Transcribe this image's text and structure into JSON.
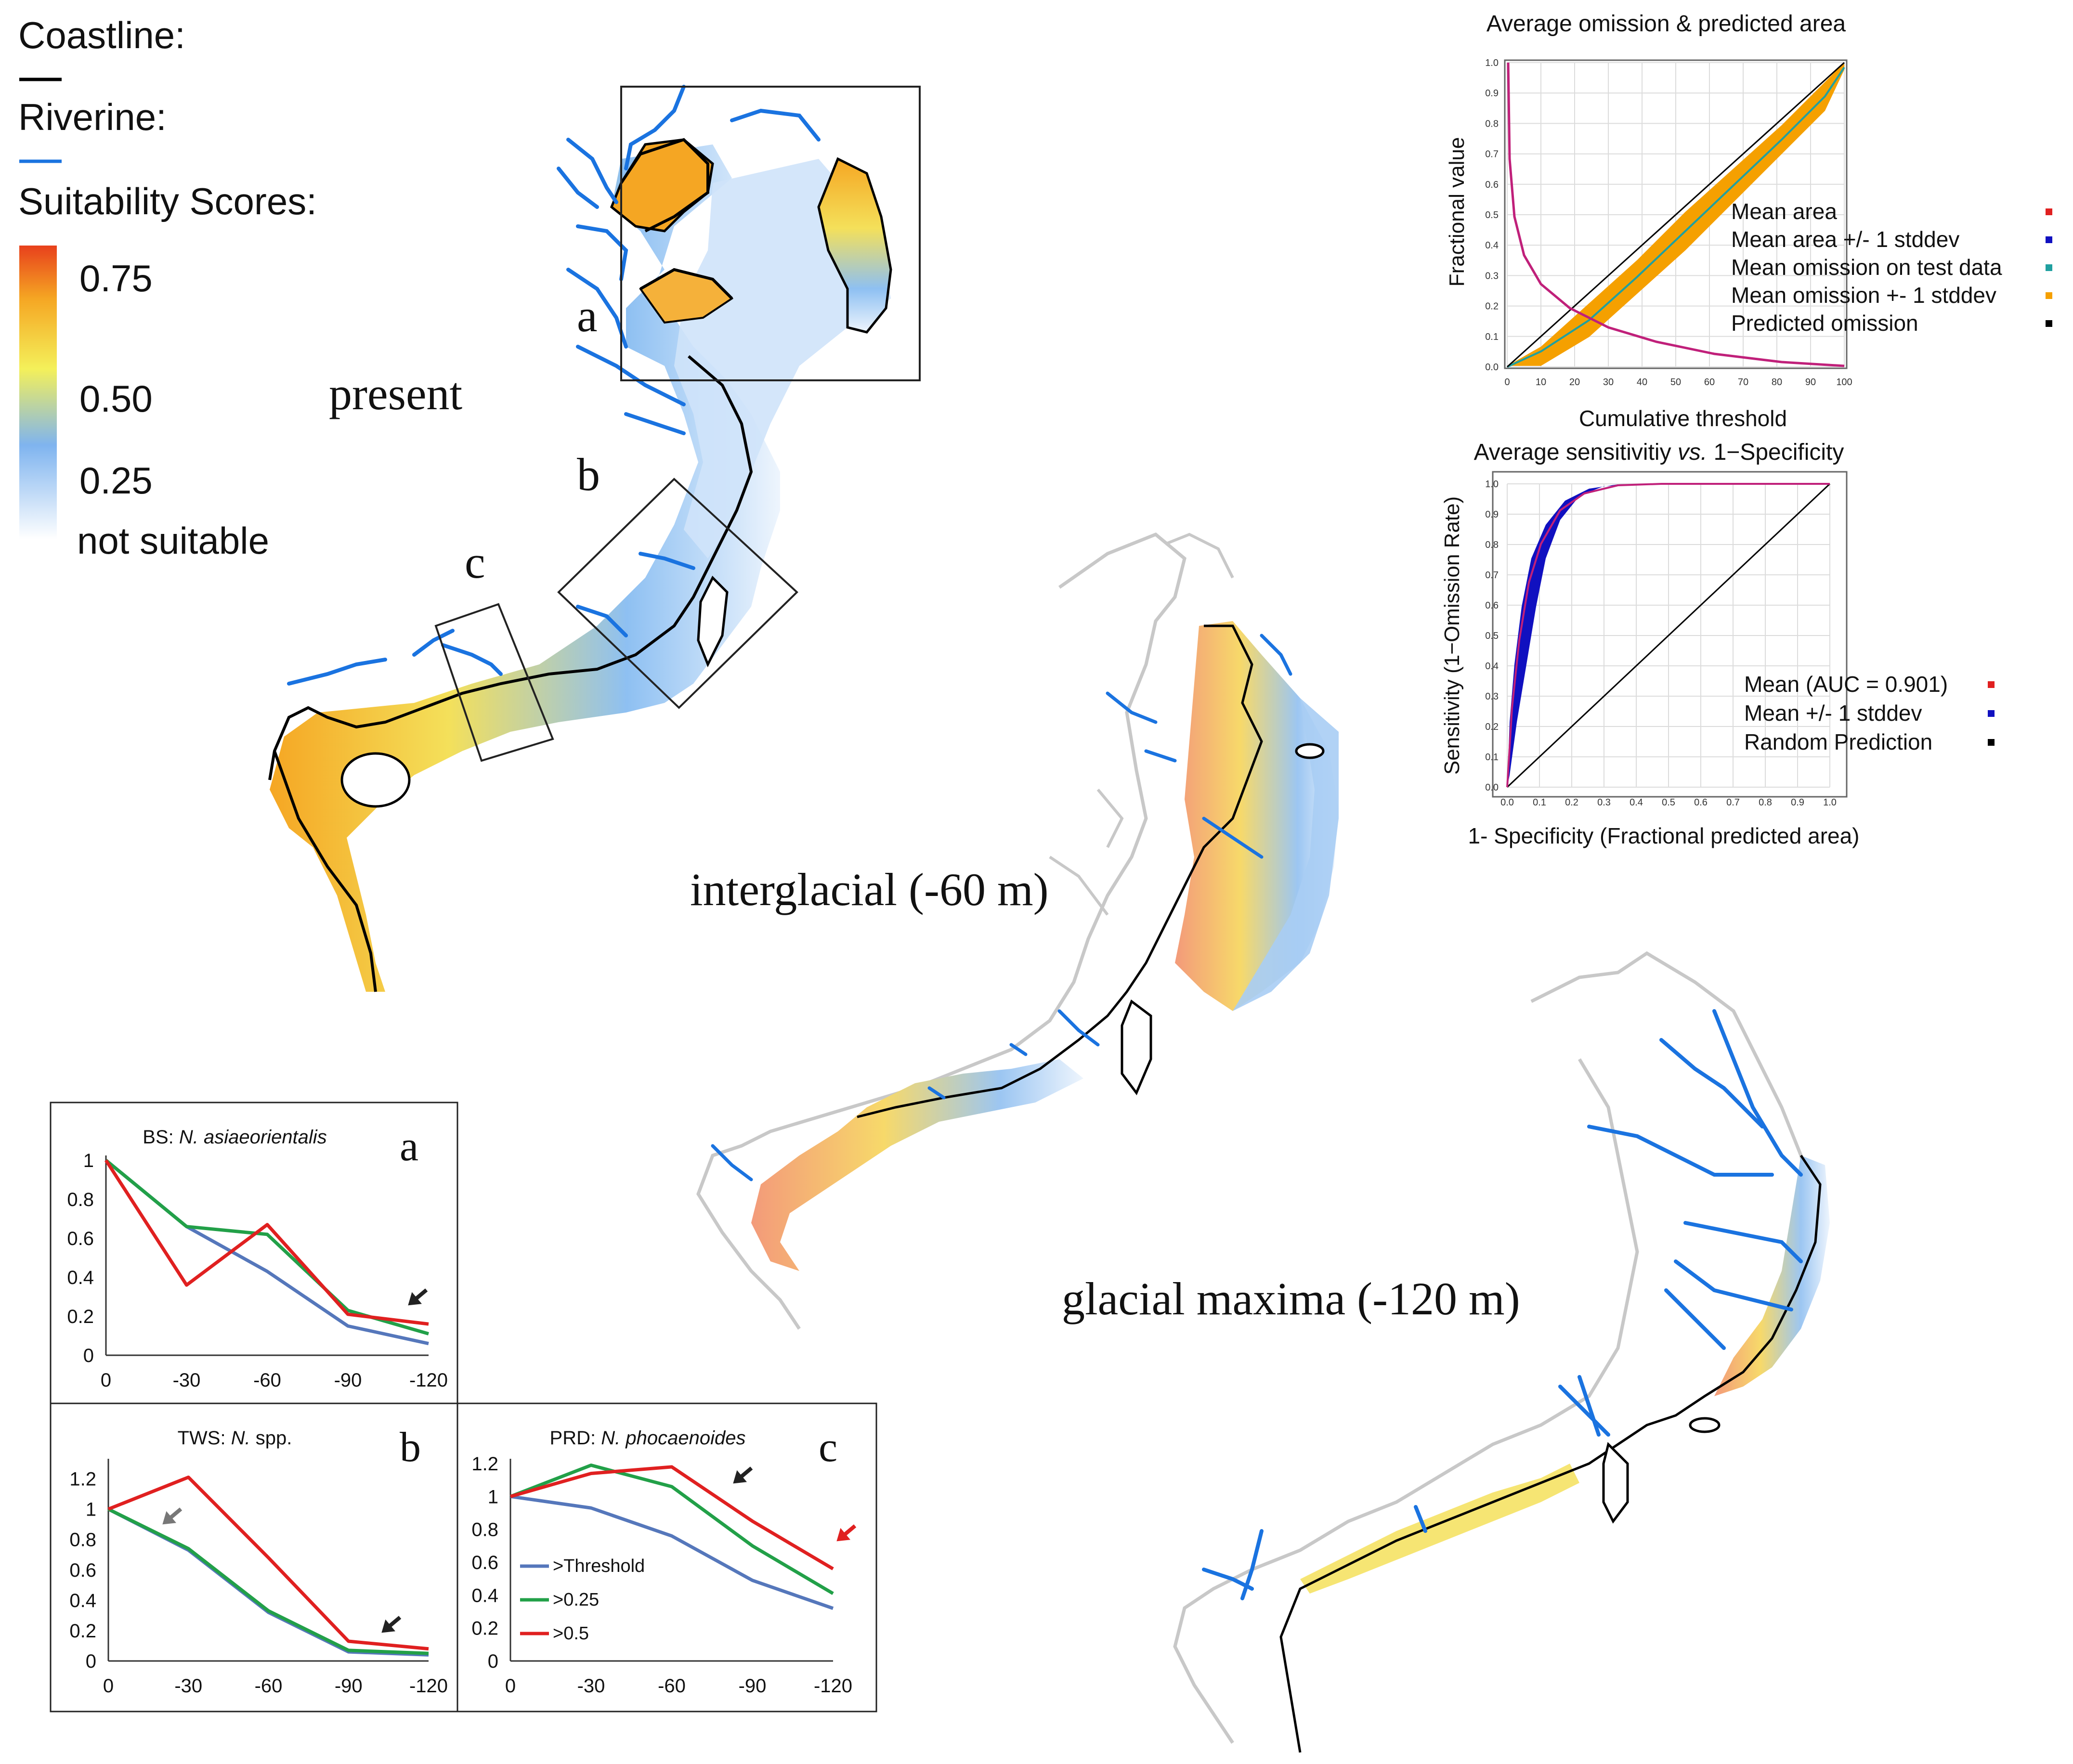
{
  "legend": {
    "coastline_label": "Coastline:",
    "riverine_label": "Riverine:",
    "suitability_label": "Suitability Scores:",
    "colorbar": [
      {
        "label": "0.75",
        "color": "#e8401c"
      },
      {
        "label": "0.50",
        "color": "#f4f05a"
      },
      {
        "label": "0.25",
        "color": "#7fb4ef"
      },
      {
        "label": "not suitable",
        "color": "#ffffff"
      }
    ],
    "coastline_color": "#000000",
    "river_color": "#1a73e0"
  },
  "maps": {
    "present": {
      "label": "present",
      "box_labels": [
        "a",
        "b",
        "c"
      ]
    },
    "interglacial": {
      "label": "interglacial (-60 m)"
    },
    "glacial": {
      "label": "glacial maxima (-120 m)"
    }
  },
  "roc_charts": {
    "omission": {
      "title": "Average omission & predicted area",
      "xlabel": "Cumulative threshold",
      "ylabel": "Fractional value",
      "xticks": [
        "0",
        "10",
        "20",
        "30",
        "40",
        "50",
        "60",
        "70",
        "80",
        "90",
        "100"
      ],
      "yticks": [
        "0.0",
        "0.1",
        "0.2",
        "0.3",
        "0.4",
        "0.5",
        "0.6",
        "0.7",
        "0.8",
        "0.9",
        "1.0"
      ],
      "legend": [
        {
          "label": "Mean area",
          "color": "#e02020"
        },
        {
          "label": "Mean area +/- 1 stddev",
          "color": "#1010c0"
        },
        {
          "label": "Mean omission on test data",
          "color": "#20a0a0"
        },
        {
          "label": "Mean omission +- 1 stddev",
          "color": "#f5a000"
        },
        {
          "label": "Predicted omission",
          "color": "#000000"
        }
      ]
    },
    "sensitivity": {
      "title_part1": "Average sensitivitiy ",
      "title_italic": "vs.",
      "title_part2": " 1−Specificity",
      "xlabel": "1- Specificity (Fractional predicted area)",
      "ylabel": "Sensitivity (1−Omission Rate)",
      "xticks": [
        "0.0",
        "0.1",
        "0.2",
        "0.3",
        "0.4",
        "0.5",
        "0.6",
        "0.7",
        "0.8",
        "0.9",
        "1.0"
      ],
      "yticks": [
        "0.0",
        "0.1",
        "0.2",
        "0.3",
        "0.4",
        "0.5",
        "0.6",
        "0.7",
        "0.8",
        "0.9",
        "1.0"
      ],
      "legend": [
        {
          "label": "Mean (AUC = 0.901)",
          "color": "#e02020"
        },
        {
          "label": "Mean +/- 1 stddev",
          "color": "#1010c0"
        },
        {
          "label": "Random Prediction",
          "color": "#000000"
        }
      ]
    }
  },
  "chart_data": [
    {
      "type": "line",
      "title_prefix": "BS: ",
      "title_species": "N. asiaeorientalis",
      "panel_letter": "a",
      "categories": [
        "0",
        "-30",
        "-60",
        "-90",
        "-120"
      ],
      "yticks": [
        "0",
        "0.2",
        "0.4",
        "0.6",
        "0.8",
        "1"
      ],
      "ylim": [
        0,
        1
      ],
      "series": [
        {
          "name": ">Threshold",
          "color": "#5577bb",
          "values": [
            1,
            0.66,
            0.43,
            0.15,
            0.06
          ]
        },
        {
          "name": ">0.25",
          "color": "#22a048",
          "values": [
            1,
            0.66,
            0.62,
            0.23,
            0.11
          ]
        },
        {
          "name": ">0.5",
          "color": "#e02020",
          "values": [
            1,
            0.36,
            0.67,
            0.21,
            0.16
          ]
        }
      ]
    },
    {
      "type": "line",
      "title_prefix": "TWS: ",
      "title_species": "N.",
      "title_suffix": " spp.",
      "panel_letter": "b",
      "categories": [
        "0",
        "-30",
        "-60",
        "-90",
        "-120"
      ],
      "yticks": [
        "0",
        "0.2",
        "0.4",
        "0.6",
        "0.8",
        "1",
        "1.2"
      ],
      "ylim": [
        0,
        1.3
      ],
      "series": [
        {
          "name": ">Threshold",
          "color": "#5577bb",
          "values": [
            1,
            0.73,
            0.32,
            0.06,
            0.04
          ]
        },
        {
          "name": ">0.25",
          "color": "#22a048",
          "values": [
            1,
            0.74,
            0.33,
            0.07,
            0.05
          ]
        },
        {
          "name": ">0.5",
          "color": "#e02020",
          "values": [
            1,
            1.21,
            0.68,
            0.13,
            0.08
          ]
        }
      ]
    },
    {
      "type": "line",
      "title_prefix": "PRD: ",
      "title_species": "N. phocaenoides",
      "panel_letter": "c",
      "categories": [
        "0",
        "-30",
        "-60",
        "-90",
        "-120"
      ],
      "yticks": [
        "0",
        "0.2",
        "0.4",
        "0.6",
        "0.8",
        "1",
        "1.2"
      ],
      "ylim": [
        0,
        1.2
      ],
      "legend": [
        ">Threshold",
        ">0.25",
        ">0.5"
      ],
      "series": [
        {
          "name": ">Threshold",
          "color": "#5577bb",
          "values": [
            1,
            0.93,
            0.76,
            0.49,
            0.32
          ]
        },
        {
          "name": ">0.25",
          "color": "#22a048",
          "values": [
            1,
            1.19,
            1.06,
            0.7,
            0.41
          ]
        },
        {
          "name": ">0.5",
          "color": "#e02020",
          "values": [
            1,
            1.14,
            1.18,
            0.85,
            0.56
          ]
        }
      ]
    }
  ]
}
